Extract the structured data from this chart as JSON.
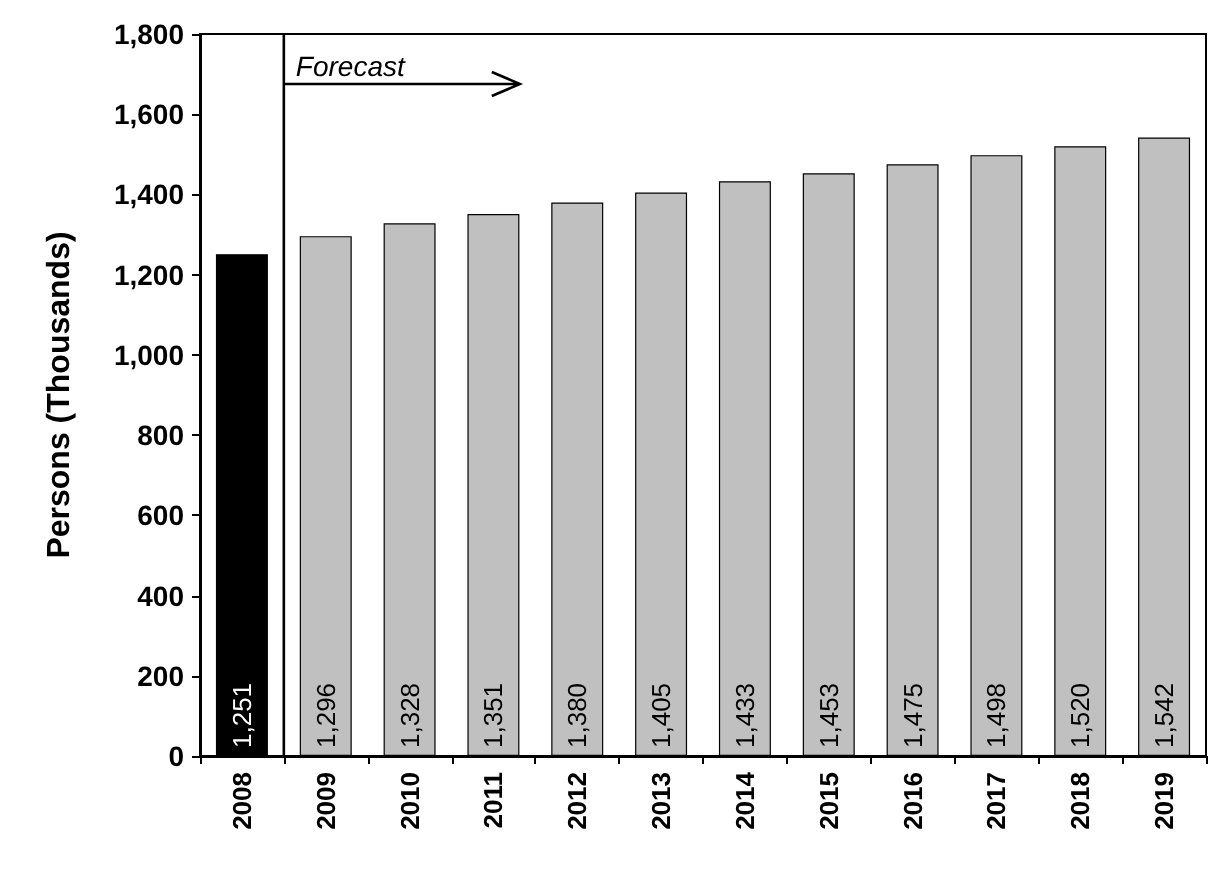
{
  "chart_data": {
    "type": "bar",
    "ylabel": "Persons (Thousands)",
    "categories": [
      "2008",
      "2009",
      "2010",
      "2011",
      "2012",
      "2013",
      "2014",
      "2015",
      "2016",
      "2017",
      "2018",
      "2019"
    ],
    "values": [
      1251,
      1296,
      1328,
      1351,
      1380,
      1405,
      1433,
      1453,
      1475,
      1498,
      1520,
      1542
    ],
    "value_labels": [
      "1,251",
      "1,296",
      "1,328",
      "1,351",
      "1,380",
      "1,405",
      "1,433",
      "1,453",
      "1,475",
      "1,498",
      "1,520",
      "1,542"
    ],
    "colors": [
      "#000000",
      "#c0c0c0",
      "#c0c0c0",
      "#c0c0c0",
      "#c0c0c0",
      "#c0c0c0",
      "#c0c0c0",
      "#c0c0c0",
      "#c0c0c0",
      "#c0c0c0",
      "#c0c0c0",
      "#c0c0c0"
    ],
    "ylim": [
      0,
      1800
    ],
    "yticks": [
      0,
      200,
      400,
      600,
      800,
      {
        "value": 1000,
        "label": "1,000"
      },
      {
        "value": 1200,
        "label": "1,200"
      },
      {
        "value": 1400,
        "label": "1,400"
      },
      {
        "value": 1600,
        "label": "1,600"
      },
      {
        "value": 1800,
        "label": "1,800"
      }
    ],
    "grid": false,
    "annotations": [
      "Forecast"
    ]
  }
}
